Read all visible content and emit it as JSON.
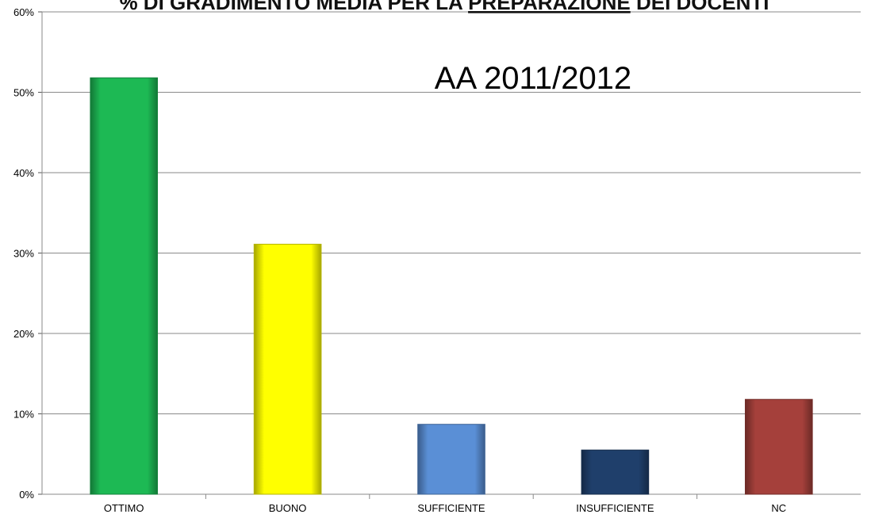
{
  "chart_data": {
    "type": "bar",
    "title_parts": [
      {
        "text": "% DI GRADIMENTO MEDIA PER LA ",
        "underline": false
      },
      {
        "text": "PREPARAZIONE",
        "underline": true
      },
      {
        "text": " DEI DOCENTI",
        "underline": false
      }
    ],
    "annotation": "AA 2011/2012",
    "categories": [
      "OTTIMO",
      "BUONO",
      "SUFFICIENTE",
      "INSUFFICIENTE",
      "NC"
    ],
    "values": [
      51.8,
      31.1,
      8.7,
      5.5,
      11.8
    ],
    "colors": [
      "#1db954",
      "#ffff00",
      "#5a8fd6",
      "#1f3f6b",
      "#a5403b"
    ],
    "ylim": [
      0,
      60
    ],
    "yticks": [
      0,
      10,
      20,
      30,
      40,
      50,
      60
    ],
    "ytick_labels": [
      "0%",
      "10%",
      "20%",
      "30%",
      "40%",
      "50%",
      "60%"
    ],
    "grid": true,
    "xlabel": "",
    "ylabel": ""
  }
}
